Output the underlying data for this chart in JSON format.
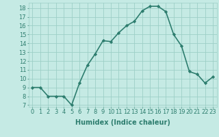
{
  "x": [
    0,
    1,
    2,
    3,
    4,
    5,
    6,
    7,
    8,
    9,
    10,
    11,
    12,
    13,
    14,
    15,
    16,
    17,
    18,
    19,
    20,
    21,
    22,
    23
  ],
  "y": [
    9,
    9,
    8,
    8,
    8,
    7,
    9.5,
    11.5,
    12.8,
    14.3,
    14.2,
    15.2,
    16.0,
    16.5,
    17.7,
    18.2,
    18.2,
    17.6,
    15.0,
    13.7,
    10.8,
    10.5,
    9.5,
    10.2
  ],
  "line_color": "#2d7d6e",
  "marker": "D",
  "markersize": 2.2,
  "bg_color": "#c5eae4",
  "grid_color": "#9dcfc7",
  "xlabel": "Humidex (Indice chaleur)",
  "xlim": [
    -0.5,
    23.5
  ],
  "ylim": [
    6.8,
    18.6
  ],
  "yticks": [
    7,
    8,
    9,
    10,
    11,
    12,
    13,
    14,
    15,
    16,
    17,
    18
  ],
  "xticks": [
    0,
    1,
    2,
    3,
    4,
    5,
    6,
    7,
    8,
    9,
    10,
    11,
    12,
    13,
    14,
    15,
    16,
    17,
    18,
    19,
    20,
    21,
    22,
    23
  ],
  "xlabel_fontsize": 7,
  "tick_fontsize": 6,
  "linewidth": 1.2
}
